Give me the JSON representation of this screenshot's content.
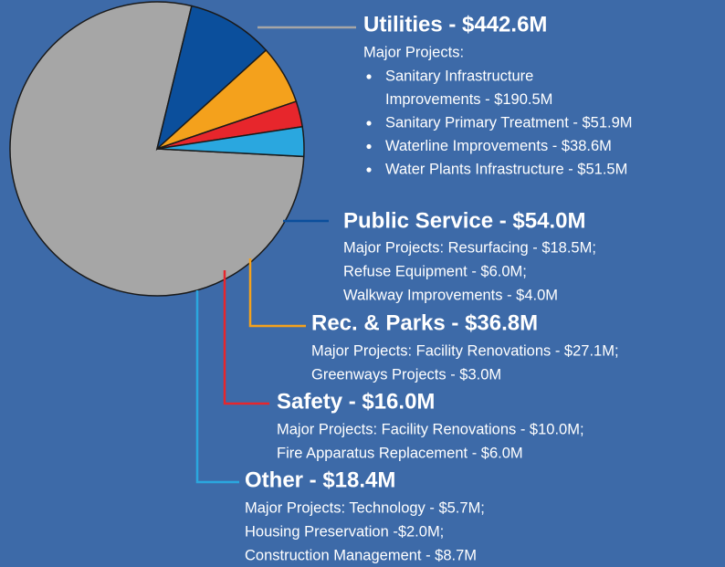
{
  "chart_data": {
    "type": "pie",
    "labels": [
      "Utilities - $442.6M",
      "Public Service - $54.0M",
      "Rec. & Parks - $36.8M",
      "Safety - $16.0M",
      "Other - $18.4M"
    ],
    "values": [
      442.6,
      54.0,
      36.8,
      16.0,
      18.4
    ],
    "colors": [
      "#a6a6a6",
      "#0b4f9c",
      "#f4a11c",
      "#e7262c",
      "#2aa7df"
    ],
    "details": [
      {
        "heading": "Major Projects:",
        "bullets": [
          [
            "Sanitary Infrastructure",
            "Improvements - $190.5M"
          ],
          [
            "Sanitary Primary Treatment - $51.9M"
          ],
          [
            "Waterline Improvements - $38.6M"
          ],
          [
            "Water Plants Infrastructure - $51.5M"
          ]
        ]
      },
      {
        "lines": [
          "Major Projects: Resurfacing - $18.5M;",
          "Refuse Equipment - $6.0M;",
          "Walkway Improvements - $4.0M"
        ]
      },
      {
        "lines": [
          "Major Projects: Facility Renovations - $27.1M;",
          "Greenways Projects - $3.0M"
        ]
      },
      {
        "lines": [
          "Major Projects: Facility Renovations - $10.0M;",
          "Fire Apparatus Replacement - $6.0M"
        ]
      },
      {
        "lines": [
          "Major Projects: Technology - $5.7M;",
          "Housing Preservation -$2.0M;",
          "Construction Management - $8.7M"
        ]
      }
    ]
  }
}
